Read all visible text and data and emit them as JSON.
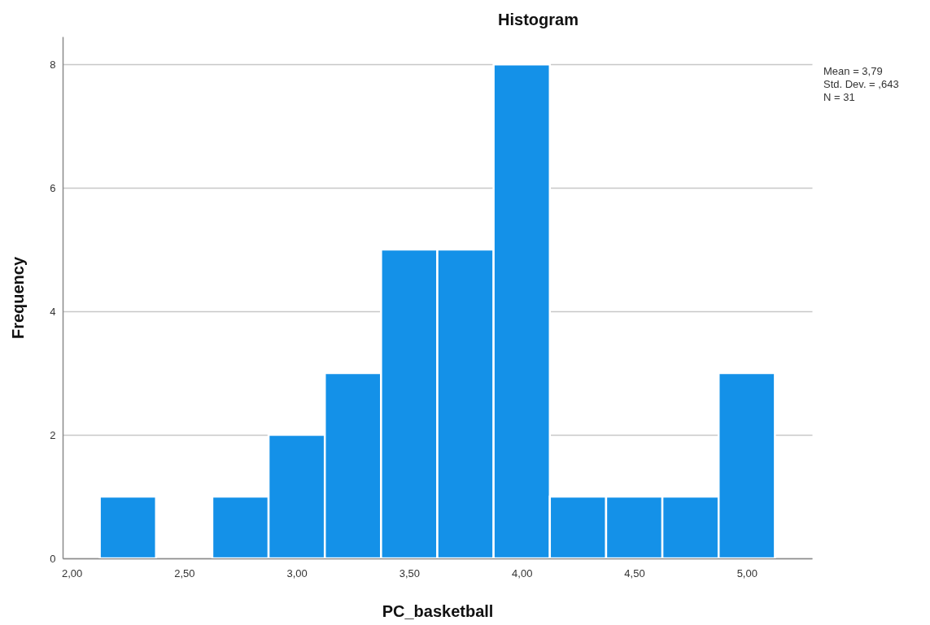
{
  "chart_data": {
    "type": "histogram",
    "title": "Histogram",
    "xlabel": "PC_basketball",
    "ylabel": "Frequency",
    "bins": [
      2.125,
      2.375,
      2.625,
      2.875,
      3.125,
      3.375,
      3.625,
      3.875,
      4.125,
      4.375,
      4.625,
      4.875,
      5.125
    ],
    "values": [
      1,
      0,
      1,
      2,
      3,
      5,
      5,
      8,
      1,
      1,
      1,
      3
    ],
    "color": "#1491e8",
    "xlim": [
      1.96,
      5.29
    ],
    "xticks": [
      {
        "value": 2,
        "label": "2,00"
      },
      {
        "value": 2.5,
        "label": "2,50"
      },
      {
        "value": 3,
        "label": "3,00"
      },
      {
        "value": 3.5,
        "label": "3,50"
      },
      {
        "value": 4,
        "label": "4,00"
      },
      {
        "value": 4.5,
        "label": "4,50"
      },
      {
        "value": 5,
        "label": "5,00"
      }
    ],
    "ylim": [
      0,
      8.45
    ],
    "yticks": [
      0,
      2,
      4,
      6,
      8
    ],
    "grid": "y",
    "annotations": [
      "Mean = 3,79",
      "Std. Dev. = ,643",
      "N = 31"
    ]
  }
}
